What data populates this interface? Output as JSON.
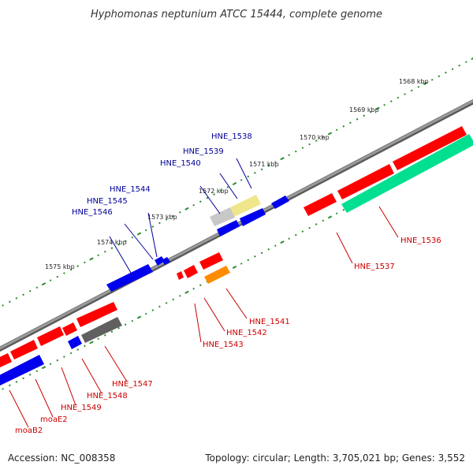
{
  "title": "Hyphomonas neptunium ATCC 15444, complete genome",
  "footer": {
    "accession": "Accession: NC_008358",
    "summary": "Topology: circular; Length: 3,705,021 bp; Genes: 3,552"
  },
  "colors": {
    "backbone": "#808080",
    "forward_label": "#000099",
    "reverse_label": "#cc0000",
    "kbp_dots": "#2e8b2e",
    "gene_red": "#ff0000",
    "gene_blue": "#0000ee",
    "gene_green": "#00e090",
    "gene_gray": "#808080",
    "gene_dark_gray": "#606060",
    "gene_khaki": "#f0e68c",
    "gene_silver": "#c8c8c8",
    "gene_orange": "#ff8c00"
  },
  "kbp_markers": [
    {
      "label": "1568 kbp"
    },
    {
      "label": "1569 kbp"
    },
    {
      "label": "1570 kbp"
    },
    {
      "label": "1571 kbp"
    },
    {
      "label": "1572 kbp"
    },
    {
      "label": "1573 kbp"
    },
    {
      "label": "1574 kbp"
    },
    {
      "label": "1575 kbp"
    }
  ],
  "forward_gene_labels": [
    "HNE_1538",
    "HNE_1539",
    "HNE_1540",
    "HNE_1544",
    "HNE_1545",
    "HNE_1546"
  ],
  "reverse_gene_labels": [
    "HNE_1536",
    "HNE_1537",
    "HNE_1541",
    "HNE_1542",
    "HNE_1543",
    "HNE_1547",
    "HNE_1548",
    "HNE_1549",
    "moaE2",
    "moaB2"
  ]
}
